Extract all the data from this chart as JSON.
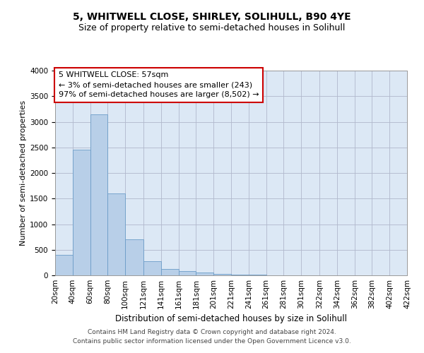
{
  "title": "5, WHITWELL CLOSE, SHIRLEY, SOLIHULL, B90 4YE",
  "subtitle": "Size of property relative to semi-detached houses in Solihull",
  "xlabel": "Distribution of semi-detached houses by size in Solihull",
  "ylabel": "Number of semi-detached properties",
  "bar_color": "#b8cfe8",
  "bar_edge_color": "#6b9cc8",
  "background_color": "#ffffff",
  "plot_bg_color": "#dce8f5",
  "grid_color": "#b0b8cc",
  "annotation_text": "5 WHITWELL CLOSE: 57sqm\n← 3% of semi-detached houses are smaller (243)\n97% of semi-detached houses are larger (8,502) →",
  "annotation_box_color": "#ffffff",
  "annotation_box_edge_color": "#cc0000",
  "bin_edges": [
    20,
    40,
    60,
    80,
    100,
    121,
    141,
    161,
    181,
    201,
    221,
    241,
    261,
    281,
    301,
    322,
    342,
    362,
    382,
    402,
    422
  ],
  "bin_labels": [
    "20sqm",
    "40sqm",
    "60sqm",
    "80sqm",
    "100sqm",
    "121sqm",
    "141sqm",
    "161sqm",
    "181sqm",
    "201sqm",
    "221sqm",
    "241sqm",
    "261sqm",
    "281sqm",
    "301sqm",
    "322sqm",
    "342sqm",
    "362sqm",
    "382sqm",
    "402sqm",
    "422sqm"
  ],
  "bar_heights": [
    400,
    2450,
    3150,
    1600,
    700,
    270,
    120,
    80,
    60,
    30,
    15,
    10,
    5,
    3,
    2,
    1,
    1,
    0,
    0,
    0
  ],
  "ylim": [
    0,
    4000
  ],
  "yticks": [
    0,
    500,
    1000,
    1500,
    2000,
    2500,
    3000,
    3500,
    4000
  ],
  "footer_text": "Contains HM Land Registry data © Crown copyright and database right 2024.\nContains public sector information licensed under the Open Government Licence v3.0.",
  "title_fontsize": 10,
  "subtitle_fontsize": 9,
  "xlabel_fontsize": 8.5,
  "ylabel_fontsize": 8,
  "tick_fontsize": 7.5,
  "footer_fontsize": 6.5,
  "annotation_fontsize": 8
}
